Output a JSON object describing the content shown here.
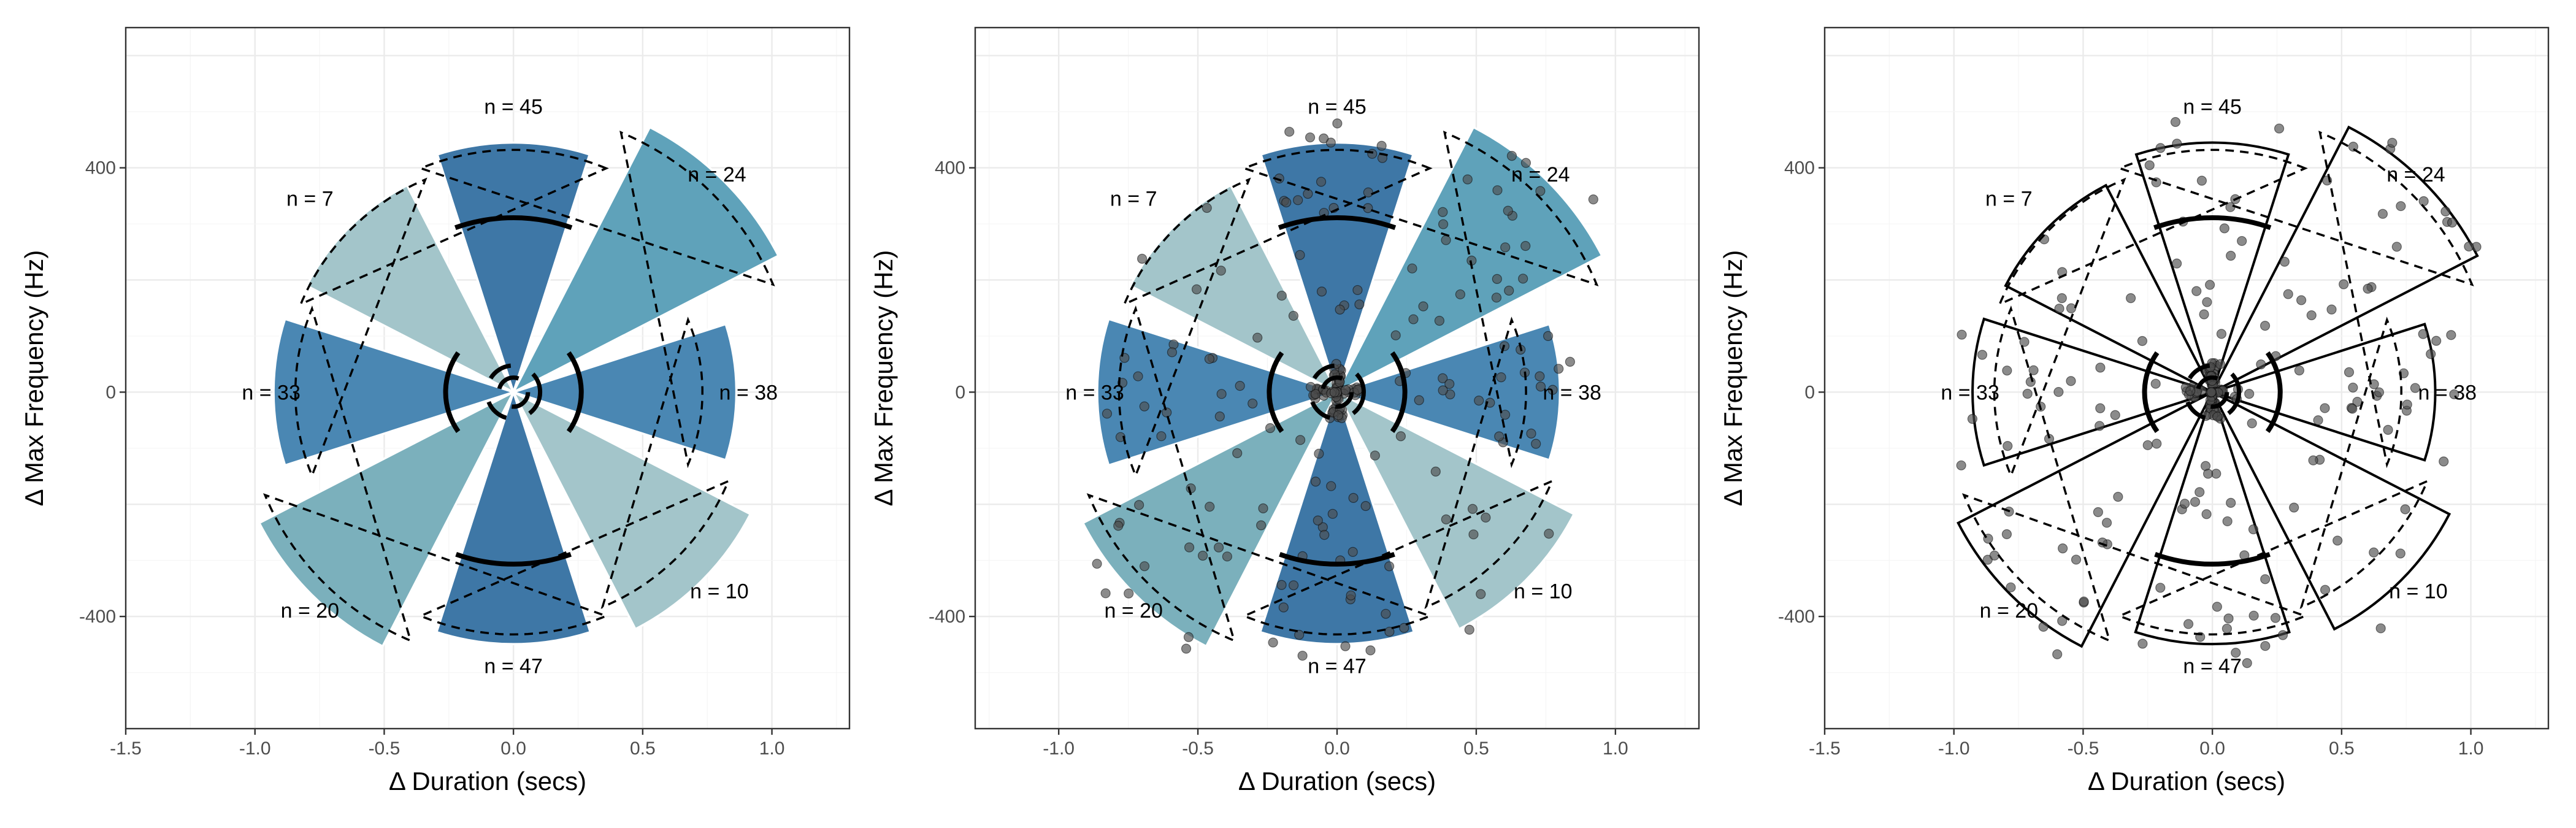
{
  "chart_data": [
    {
      "type": "rose",
      "variant": "filled",
      "xlabel": "Δ Duration (secs)",
      "ylabel": "Δ Max Frequency (Hz)",
      "xlim": [
        -1.5,
        1.3
      ],
      "ylim": [
        -600,
        650
      ],
      "xticks": [
        -1.5,
        -1.0,
        -0.5,
        0.0,
        0.5,
        1.0
      ],
      "xtick_labels": [
        "-1.5",
        "-1.0",
        "-0.5",
        "0.0",
        "0.5",
        "1.0"
      ],
      "yticks": [
        -400,
        0,
        400
      ],
      "ytick_labels": [
        "-400",
        "0",
        "400"
      ],
      "grid": true
    },
    {
      "type": "rose",
      "variant": "filled-with-points",
      "xlabel": "Δ Duration (secs)",
      "ylabel": "Δ Max Frequency (Hz)",
      "xlim": [
        -1.3,
        1.3
      ],
      "ylim": [
        -600,
        650
      ],
      "xticks": [
        -1.0,
        -0.5,
        0.0,
        0.5,
        1.0
      ],
      "xtick_labels": [
        "-1.0",
        "-0.5",
        "0.0",
        "0.5",
        "1.0"
      ],
      "yticks": [
        -400,
        0,
        400
      ],
      "ytick_labels": [
        "-400",
        "0",
        "400"
      ],
      "grid": true
    },
    {
      "type": "rose",
      "variant": "outline-with-points",
      "xlabel": "Δ Duration (secs)",
      "ylabel": "Δ Max Frequency (Hz)",
      "xlim": [
        -1.5,
        1.3
      ],
      "ylim": [
        -600,
        650
      ],
      "xticks": [
        -1.5,
        -1.0,
        -0.5,
        0.0,
        0.5,
        1.0
      ],
      "xtick_labels": [
        "-1.5",
        "-1.0",
        "-0.5",
        "0.0",
        "0.5",
        "1.0"
      ],
      "yticks": [
        -400,
        0,
        400
      ],
      "ytick_labels": [
        "-400",
        "0",
        "400"
      ],
      "grid": true
    }
  ],
  "sectors": [
    {
      "label": "n = 45",
      "n": 45,
      "radius": 1.03,
      "dashed_radius": 1.0,
      "mean_radius": 0.72,
      "color": "#3e77a6",
      "label_pos": [
        0.0,
        1.18
      ]
    },
    {
      "label": "n = 24",
      "n": 24,
      "radius": 1.23,
      "dashed_radius": 1.16,
      "mean_radius": null,
      "color": "#5fa2ba",
      "label_pos": [
        0.84,
        0.9
      ]
    },
    {
      "label": "n = 38",
      "n": 38,
      "radius": 0.92,
      "dashed_radius": 0.78,
      "mean_radius": 0.28,
      "color": "#4a87b3",
      "label_pos": [
        0.97,
        0.0
      ]
    },
    {
      "label": "n = 10",
      "n": 10,
      "radius": 1.1,
      "dashed_radius": 0.96,
      "mean_radius": null,
      "color": "#a3c5ca",
      "label_pos": [
        0.85,
        -0.82
      ]
    },
    {
      "label": "n = 47",
      "n": 47,
      "radius": 1.04,
      "dashed_radius": 1.0,
      "mean_radius": 0.71,
      "color": "#3e77a6",
      "label_pos": [
        0.0,
        -1.13
      ]
    },
    {
      "label": "n = 20",
      "n": 20,
      "radius": 1.18,
      "dashed_radius": 1.11,
      "mean_radius": null,
      "color": "#7bb0bc",
      "label_pos": [
        -0.84,
        -0.9
      ]
    },
    {
      "label": "n = 33",
      "n": 33,
      "radius": 0.99,
      "dashed_radius": 0.9,
      "mean_radius": 0.28,
      "color": "#4a87b3",
      "label_pos": [
        -1.0,
        0.0
      ]
    },
    {
      "label": "n = 7",
      "n": 7,
      "radius": 0.96,
      "dashed_radius": 0.95,
      "mean_radius": null,
      "color": "#a3c5ca",
      "label_pos": [
        -0.84,
        0.8
      ]
    }
  ],
  "center_arcs": [
    0.06,
    0.11
  ],
  "colors": {
    "panel_border": "#333333",
    "grid_major": "#ebebeb",
    "grid_minor": "#f5f5f5",
    "point_fill": "#4d4d4d",
    "outline": "#000000"
  }
}
